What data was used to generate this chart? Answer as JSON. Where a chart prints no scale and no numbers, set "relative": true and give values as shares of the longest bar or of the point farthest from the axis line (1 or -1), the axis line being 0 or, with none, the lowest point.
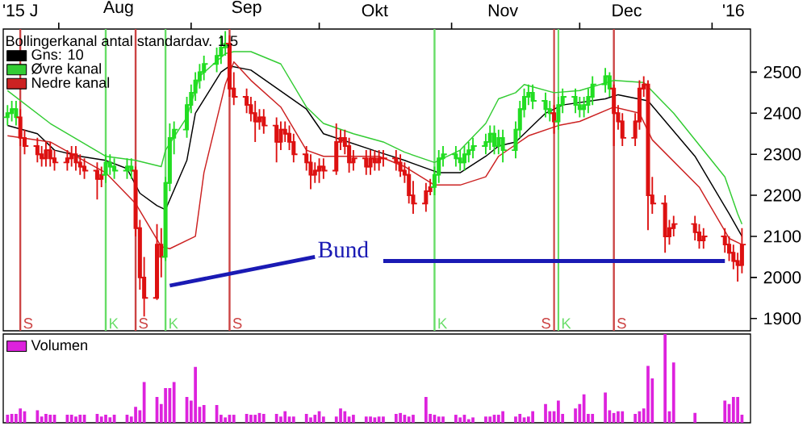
{
  "chart_data": [
    {
      "type": "candlestick",
      "x": [
        "2015-07-20",
        "2015-07-21",
        "2015-07-22",
        "2015-07-23",
        "2015-07-24",
        "2015-07-27",
        "2015-07-28",
        "2015-07-29",
        "2015-07-30",
        "2015-07-31",
        "2015-08-03",
        "2015-08-04",
        "2015-08-05",
        "2015-08-06",
        "2015-08-07",
        "2015-08-10",
        "2015-08-11",
        "2015-08-12",
        "2015-08-13",
        "2015-08-14",
        "2015-08-17",
        "2015-08-18",
        "2015-08-19",
        "2015-08-20",
        "2015-08-21",
        "2015-08-24",
        "2015-08-25",
        "2015-08-26",
        "2015-08-27",
        "2015-08-28",
        "2015-08-31",
        "2015-09-01",
        "2015-09-02",
        "2015-09-03",
        "2015-09-04",
        "2015-09-07",
        "2015-09-08",
        "2015-09-09",
        "2015-09-10",
        "2015-09-11",
        "2015-09-14",
        "2015-09-15",
        "2015-09-16",
        "2015-09-17",
        "2015-09-18",
        "2015-09-21",
        "2015-09-22",
        "2015-09-23",
        "2015-09-24",
        "2015-09-25",
        "2015-09-28",
        "2015-09-29",
        "2015-09-30",
        "2015-10-01",
        "2015-10-02",
        "2015-10-05",
        "2015-10-06",
        "2015-10-07",
        "2015-10-08",
        "2015-10-09",
        "2015-10-12",
        "2015-10-13",
        "2015-10-14",
        "2015-10-15",
        "2015-10-16",
        "2015-10-19",
        "2015-10-20",
        "2015-10-21",
        "2015-10-22",
        "2015-10-23",
        "2015-10-26",
        "2015-10-27",
        "2015-10-28",
        "2015-10-29",
        "2015-10-30",
        "2015-11-02",
        "2015-11-03",
        "2015-11-04",
        "2015-11-05",
        "2015-11-06",
        "2015-11-09",
        "2015-11-10",
        "2015-11-11",
        "2015-11-12",
        "2015-11-13",
        "2015-11-16",
        "2015-11-17",
        "2015-11-18",
        "2015-11-19",
        "2015-11-20",
        "2015-11-23",
        "2015-11-24",
        "2015-11-25",
        "2015-11-26",
        "2015-11-27",
        "2015-11-30",
        "2015-12-01",
        "2015-12-02",
        "2015-12-03",
        "2015-12-04",
        "2015-12-07",
        "2015-12-08",
        "2015-12-09",
        "2015-12-10",
        "2015-12-11",
        "2015-12-14",
        "2015-12-15",
        "2015-12-16",
        "2015-12-17",
        "2015-12-18",
        "2015-12-21",
        "2015-12-22",
        "2015-12-23",
        "2015-12-28",
        "2015-12-29",
        "2015-12-30",
        "2016-01-04",
        "2016-01-05",
        "2016-01-06",
        "2016-01-07",
        "2016-01-08"
      ],
      "ohlc": [
        [
          2390,
          2420,
          2370,
          2400
        ],
        [
          2400,
          2430,
          2380,
          2410
        ],
        [
          2410,
          2430,
          2370,
          2390
        ],
        [
          2390,
          2410,
          2320,
          2340
        ],
        [
          2340,
          2360,
          2300,
          2320
        ],
        [
          2320,
          2340,
          2280,
          2300
        ],
        [
          2300,
          2320,
          2270,
          2290
        ],
        [
          2290,
          2330,
          2270,
          2310
        ],
        [
          2310,
          2330,
          2270,
          2290
        ],
        [
          2290,
          2310,
          2260,
          2280
        ],
        [
          2280,
          2310,
          2260,
          2290
        ],
        [
          2290,
          2320,
          2270,
          2300
        ],
        [
          2300,
          2320,
          2260,
          2280
        ],
        [
          2280,
          2300,
          2250,
          2270
        ],
        [
          2270,
          2290,
          2240,
          2260
        ],
        [
          2260,
          2280,
          2190,
          2240
        ],
        [
          2240,
          2270,
          2220,
          2250
        ],
        [
          2250,
          2300,
          2230,
          2280
        ],
        [
          2280,
          2300,
          2250,
          2270
        ],
        [
          2270,
          2290,
          2240,
          2260
        ],
        [
          2260,
          2290,
          2240,
          2270
        ],
        [
          2270,
          2290,
          2240,
          2260
        ],
        [
          2260,
          2270,
          2100,
          2120
        ],
        [
          2120,
          2140,
          1970,
          2000
        ],
        [
          2000,
          2050,
          1905,
          1950
        ],
        [
          1950,
          2130,
          1945,
          2080
        ],
        [
          2080,
          2120,
          2000,
          2050
        ],
        [
          2050,
          2245,
          2040,
          2230
        ],
        [
          2230,
          2375,
          2210,
          2340
        ],
        [
          2340,
          2380,
          2300,
          2360
        ],
        [
          2360,
          2440,
          2340,
          2420
        ],
        [
          2420,
          2470,
          2400,
          2450
        ],
        [
          2450,
          2500,
          2430,
          2480
        ],
        [
          2480,
          2520,
          2460,
          2500
        ],
        [
          2500,
          2540,
          2480,
          2520
        ],
        [
          2520,
          2560,
          2500,
          2540
        ],
        [
          2540,
          2590,
          2520,
          2560
        ],
        [
          2560,
          2600,
          2540,
          2570
        ],
        [
          2570,
          2590,
          2440,
          2460
        ],
        [
          2460,
          2500,
          2420,
          2440
        ],
        [
          2440,
          2460,
          2400,
          2420
        ],
        [
          2420,
          2440,
          2380,
          2400
        ],
        [
          2400,
          2430,
          2330,
          2380
        ],
        [
          2380,
          2410,
          2360,
          2390
        ],
        [
          2390,
          2410,
          2350,
          2370
        ],
        [
          2370,
          2390,
          2280,
          2330
        ],
        [
          2330,
          2380,
          2310,
          2360
        ],
        [
          2360,
          2380,
          2330,
          2350
        ],
        [
          2350,
          2370,
          2310,
          2330
        ],
        [
          2330,
          2350,
          2280,
          2300
        ],
        [
          2300,
          2320,
          2260,
          2280
        ],
        [
          2280,
          2300,
          2215,
          2250
        ],
        [
          2250,
          2280,
          2230,
          2260
        ],
        [
          2260,
          2290,
          2230,
          2270
        ],
        [
          2270,
          2290,
          2240,
          2260
        ],
        [
          2260,
          2375,
          2250,
          2330
        ],
        [
          2330,
          2360,
          2310,
          2340
        ],
        [
          2340,
          2360,
          2300,
          2320
        ],
        [
          2320,
          2340,
          2255,
          2280
        ],
        [
          2280,
          2310,
          2260,
          2290
        ],
        [
          2290,
          2310,
          2250,
          2270
        ],
        [
          2270,
          2310,
          2250,
          2290
        ],
        [
          2290,
          2310,
          2260,
          2280
        ],
        [
          2280,
          2310,
          2260,
          2290
        ],
        [
          2290,
          2310,
          2270,
          2290
        ],
        [
          2290,
          2310,
          2260,
          2280
        ],
        [
          2280,
          2300,
          2245,
          2260
        ],
        [
          2260,
          2280,
          2230,
          2250
        ],
        [
          2250,
          2270,
          2180,
          2200
        ],
        [
          2200,
          2235,
          2155,
          2180
        ],
        [
          2180,
          2230,
          2160,
          2210
        ],
        [
          2210,
          2240,
          2200,
          2220
        ],
        [
          2220,
          2270,
          2200,
          2250
        ],
        [
          2250,
          2310,
          2230,
          2290
        ],
        [
          2290,
          2320,
          2270,
          2300
        ],
        [
          2300,
          2320,
          2270,
          2290
        ],
        [
          2290,
          2310,
          2260,
          2280
        ],
        [
          2280,
          2320,
          2260,
          2300
        ],
        [
          2300,
          2330,
          2280,
          2310
        ],
        [
          2310,
          2340,
          2290,
          2320
        ],
        [
          2320,
          2350,
          2300,
          2330
        ],
        [
          2330,
          2370,
          2310,
          2350
        ],
        [
          2350,
          2370,
          2300,
          2320
        ],
        [
          2320,
          2360,
          2300,
          2340
        ],
        [
          2340,
          2360,
          2280,
          2310
        ],
        [
          2310,
          2380,
          2290,
          2360
        ],
        [
          2360,
          2430,
          2340,
          2410
        ],
        [
          2410,
          2460,
          2390,
          2440
        ],
        [
          2440,
          2470,
          2420,
          2450
        ],
        [
          2450,
          2470,
          2410,
          2430
        ],
        [
          2430,
          2450,
          2390,
          2410
        ],
        [
          2410,
          2430,
          2380,
          2400
        ],
        [
          2400,
          2420,
          2350,
          2380
        ],
        [
          2380,
          2440,
          2360,
          2420
        ],
        [
          2420,
          2460,
          2400,
          2440
        ],
        [
          2440,
          2460,
          2400,
          2420
        ],
        [
          2420,
          2440,
          2390,
          2410
        ],
        [
          2410,
          2440,
          2390,
          2420
        ],
        [
          2420,
          2460,
          2400,
          2440
        ],
        [
          2440,
          2490,
          2420,
          2470
        ],
        [
          2470,
          2510,
          2450,
          2490
        ],
        [
          2490,
          2500,
          2440,
          2460
        ],
        [
          2460,
          2470,
          2320,
          2400
        ],
        [
          2400,
          2420,
          2360,
          2380
        ],
        [
          2380,
          2400,
          2320,
          2340
        ],
        [
          2340,
          2400,
          2320,
          2380
        ],
        [
          2380,
          2480,
          2360,
          2460
        ],
        [
          2460,
          2490,
          2440,
          2470
        ],
        [
          2470,
          2480,
          2115,
          2200
        ],
        [
          2200,
          2245,
          2155,
          2180
        ],
        [
          2180,
          2200,
          2060,
          2100
        ],
        [
          2100,
          2140,
          2080,
          2120
        ],
        [
          2120,
          2150,
          2100,
          2130
        ],
        [
          2130,
          2150,
          2090,
          2110
        ],
        [
          2110,
          2130,
          2070,
          2090
        ],
        [
          2090,
          2120,
          2070,
          2100
        ],
        [
          2100,
          2120,
          2060,
          2080
        ],
        [
          2080,
          2100,
          2040,
          2060
        ],
        [
          2060,
          2080,
          2020,
          2040
        ],
        [
          2040,
          2060,
          1990,
          2030
        ],
        [
          2030,
          2120,
          2010,
          2080
        ]
      ],
      "colors": [
        "#22dd22",
        "#22dd22",
        "#22dd22",
        "#dd1111",
        "#dd1111",
        "#dd1111",
        "#dd1111",
        "#dd1111",
        "#dd1111",
        "#dd1111",
        "#dd1111",
        "#dd1111",
        "#dd1111",
        "#dd1111",
        "#dd1111",
        "#dd1111",
        "#dd1111",
        "#22dd22",
        "#22dd22",
        "#22dd22",
        "#22dd22",
        "#22dd22",
        "#dd1111",
        "#dd1111",
        "#dd1111",
        "#dd1111",
        "#dd1111",
        "#22dd22",
        "#22dd22",
        "#22dd22",
        "#22dd22",
        "#22dd22",
        "#22dd22",
        "#22dd22",
        "#22dd22",
        "#22dd22",
        "#22dd22",
        "#22dd22",
        "#dd1111",
        "#dd1111",
        "#dd1111",
        "#dd1111",
        "#dd1111",
        "#dd1111",
        "#dd1111",
        "#dd1111",
        "#dd1111",
        "#dd1111",
        "#dd1111",
        "#dd1111",
        "#dd1111",
        "#dd1111",
        "#dd1111",
        "#dd1111",
        "#dd1111",
        "#dd1111",
        "#dd1111",
        "#dd1111",
        "#dd1111",
        "#dd1111",
        "#dd1111",
        "#dd1111",
        "#dd1111",
        "#dd1111",
        "#dd1111",
        "#dd1111",
        "#dd1111",
        "#dd1111",
        "#dd1111",
        "#dd1111",
        "#dd1111",
        "#dd1111",
        "#22dd22",
        "#22dd22",
        "#22dd22",
        "#22dd22",
        "#22dd22",
        "#22dd22",
        "#22dd22",
        "#22dd22",
        "#22dd22",
        "#22dd22",
        "#22dd22",
        "#22dd22",
        "#22dd22",
        "#22dd22",
        "#22dd22",
        "#22dd22",
        "#22dd22",
        "#22dd22",
        "#22dd22",
        "#22dd22",
        "#dd1111",
        "#22dd22",
        "#22dd22",
        "#22dd22",
        "#22dd22",
        "#22dd22",
        "#22dd22",
        "#22dd22",
        "#22dd22",
        "#22dd22",
        "#dd1111",
        "#dd1111",
        "#dd1111",
        "#dd1111",
        "#dd1111",
        "#dd1111",
        "#dd1111",
        "#dd1111",
        "#dd1111",
        "#dd1111",
        "#dd1111",
        "#dd1111",
        "#dd1111",
        "#dd1111",
        "#dd1111",
        "#dd1111",
        "#dd1111",
        "#dd1111",
        "#dd1111"
      ],
      "series": [
        {
          "type": "line",
          "name": "Gns: 10",
          "color": "#000000",
          "x": [
            "2015-07-20",
            "2015-07-27",
            "2015-07-31",
            "2015-08-06",
            "2015-08-12",
            "2015-08-17",
            "2015-08-20",
            "2015-08-24",
            "2015-08-26",
            "2015-08-31",
            "2015-09-02",
            "2015-09-08",
            "2015-09-10",
            "2015-09-15",
            "2015-09-28",
            "2015-10-02",
            "2015-10-15",
            "2015-10-21",
            "2015-10-29",
            "2015-11-03",
            "2015-11-09",
            "2015-11-12",
            "2015-11-16",
            "2015-11-23",
            "2015-11-27",
            "2015-12-07",
            "2015-12-10",
            "2015-12-17",
            "2015-12-28",
            "2016-01-05",
            "2016-01-08"
          ],
          "values": [
            2370,
            2350,
            2310,
            2295,
            2285,
            2265,
            2205,
            2175,
            2165,
            2285,
            2400,
            2500,
            2515,
            2505,
            2410,
            2350,
            2305,
            2285,
            2255,
            2255,
            2295,
            2320,
            2330,
            2400,
            2420,
            2435,
            2445,
            2430,
            2295,
            2155,
            2100
          ]
        },
        {
          "type": "line",
          "name": "Øvre kanal",
          "color": "#33cc33",
          "x": [
            "2015-07-20",
            "2015-07-30",
            "2015-08-12",
            "2015-08-19",
            "2015-08-25",
            "2015-08-26",
            "2015-08-31",
            "2015-09-03",
            "2015-09-09",
            "2015-09-11",
            "2015-09-15",
            "2015-09-22",
            "2015-09-28",
            "2015-10-02",
            "2015-10-09",
            "2015-10-16",
            "2015-10-21",
            "2015-10-28",
            "2015-11-03",
            "2015-11-09",
            "2015-11-12",
            "2015-11-16",
            "2015-11-18",
            "2015-11-25",
            "2015-12-01",
            "2015-12-09",
            "2015-12-16",
            "2015-12-23",
            "2016-01-04",
            "2016-01-07",
            "2016-01-08"
          ],
          "values": [
            2455,
            2375,
            2295,
            2285,
            2270,
            2310,
            2390,
            2490,
            2545,
            2550,
            2550,
            2520,
            2415,
            2375,
            2350,
            2330,
            2305,
            2280,
            2310,
            2375,
            2435,
            2450,
            2470,
            2450,
            2455,
            2480,
            2475,
            2400,
            2245,
            2155,
            2130
          ]
        },
        {
          "type": "line",
          "name": "Nedre kanal",
          "color": "#cc2222",
          "x": [
            "2015-07-20",
            "2015-07-30",
            "2015-08-12",
            "2015-08-19",
            "2015-08-25",
            "2015-08-27",
            "2015-09-02",
            "2015-09-04",
            "2015-09-09",
            "2015-09-11",
            "2015-09-15",
            "2015-09-22",
            "2015-09-28",
            "2015-10-02",
            "2015-10-15",
            "2015-10-21",
            "2015-10-28",
            "2015-11-03",
            "2015-11-09",
            "2015-11-12",
            "2015-11-19",
            "2015-11-26",
            "2015-12-01",
            "2015-12-09",
            "2015-12-15",
            "2015-12-18",
            "2015-12-29",
            "2016-01-05",
            "2016-01-08"
          ],
          "values": [
            2345,
            2330,
            2255,
            2180,
            2075,
            2070,
            2100,
            2255,
            2470,
            2525,
            2480,
            2415,
            2310,
            2295,
            2295,
            2270,
            2225,
            2225,
            2245,
            2295,
            2345,
            2370,
            2380,
            2415,
            2400,
            2335,
            2220,
            2095,
            2080
          ]
        },
        {
          "type": "line",
          "color": "#1a1ab4",
          "x": [
            "2015-08-27",
            "2015-09-30"
          ],
          "values": [
            1980,
            2050
          ]
        },
        {
          "type": "line",
          "color": "#1a1ab4",
          "x": [
            "2015-10-16",
            "2016-01-04"
          ],
          "values": [
            2040,
            2040
          ]
        }
      ],
      "xlim": [
        "2015-07-19",
        "2016-01-10"
      ],
      "xticks": [
        {
          "value": "2015-07-23",
          "label": "'15 J"
        },
        {
          "value": "2015-08-15",
          "label": "Aug"
        },
        {
          "value": "2015-09-14",
          "label": "Sep"
        },
        {
          "value": "2015-10-14",
          "label": "Okt"
        },
        {
          "value": "2015-11-13",
          "label": "Nov"
        },
        {
          "value": "2015-12-12",
          "label": "Dec"
        },
        {
          "value": "2016-01-06",
          "label": "'16"
        },
        {
          "value": "2015-08-01",
          "label": null
        },
        {
          "value": "2015-09-01",
          "label": null
        },
        {
          "value": "2015-10-01",
          "label": null
        },
        {
          "value": "2015-11-01",
          "label": null
        },
        {
          "value": "2015-12-01",
          "label": null
        },
        {
          "value": "2016-01-01",
          "label": null
        }
      ],
      "ylim": [
        1870,
        2605
      ],
      "yticks": [
        1900,
        2000,
        2100,
        2200,
        2300,
        2400,
        2500
      ],
      "ref_lines": [
        {
          "axis": "x",
          "value": "2015-07-23",
          "label": "S",
          "color": "#cc4444"
        },
        {
          "axis": "x",
          "value": "2015-08-12",
          "label": "K",
          "color": "#66dd66"
        },
        {
          "axis": "x",
          "value": "2015-08-19",
          "label": "S",
          "color": "#cc4444"
        },
        {
          "axis": "x",
          "value": "2015-08-26",
          "label": "K",
          "color": "#66dd66"
        },
        {
          "axis": "x",
          "value": "2015-09-10",
          "label": "S",
          "color": "#cc4444"
        },
        {
          "axis": "x",
          "value": "2015-10-28",
          "label": "K",
          "color": "#66dd66"
        },
        {
          "axis": "x",
          "value": "2015-11-25",
          "label": "S",
          "color": "#cc4444"
        },
        {
          "axis": "x",
          "value": "2015-11-26",
          "label": "K",
          "color": "#66dd66"
        },
        {
          "axis": "x",
          "value": "2015-12-09",
          "label": "S",
          "color": "#cc4444"
        }
      ],
      "annotations": [
        "Bund"
      ],
      "legend": "top left",
      "legend_title": "Bollingerkanal antal standardav. 1,5"
    },
    {
      "type": "bar",
      "relative": true,
      "x": [
        "2015-07-20",
        "2015-07-21",
        "2015-07-22",
        "2015-07-23",
        "2015-07-24",
        "2015-07-27",
        "2015-07-28",
        "2015-07-29",
        "2015-07-30",
        "2015-07-31",
        "2015-08-03",
        "2015-08-04",
        "2015-08-05",
        "2015-08-06",
        "2015-08-07",
        "2015-08-10",
        "2015-08-11",
        "2015-08-12",
        "2015-08-13",
        "2015-08-14",
        "2015-08-17",
        "2015-08-18",
        "2015-08-19",
        "2015-08-20",
        "2015-08-21",
        "2015-08-24",
        "2015-08-25",
        "2015-08-26",
        "2015-08-27",
        "2015-08-28",
        "2015-08-31",
        "2015-09-01",
        "2015-09-02",
        "2015-09-03",
        "2015-09-04",
        "2015-09-07",
        "2015-09-08",
        "2015-09-09",
        "2015-09-10",
        "2015-09-11",
        "2015-09-14",
        "2015-09-15",
        "2015-09-16",
        "2015-09-17",
        "2015-09-18",
        "2015-09-21",
        "2015-09-22",
        "2015-09-23",
        "2015-09-24",
        "2015-09-25",
        "2015-09-28",
        "2015-09-29",
        "2015-09-30",
        "2015-10-01",
        "2015-10-02",
        "2015-10-05",
        "2015-10-06",
        "2015-10-07",
        "2015-10-08",
        "2015-10-09",
        "2015-10-12",
        "2015-10-13",
        "2015-10-14",
        "2015-10-15",
        "2015-10-16",
        "2015-10-19",
        "2015-10-20",
        "2015-10-21",
        "2015-10-22",
        "2015-10-23",
        "2015-10-26",
        "2015-10-27",
        "2015-10-28",
        "2015-10-29",
        "2015-10-30",
        "2015-11-02",
        "2015-11-03",
        "2015-11-04",
        "2015-11-05",
        "2015-11-06",
        "2015-11-09",
        "2015-11-10",
        "2015-11-11",
        "2015-11-12",
        "2015-11-13",
        "2015-11-16",
        "2015-11-17",
        "2015-11-18",
        "2015-11-19",
        "2015-11-20",
        "2015-11-23",
        "2015-11-24",
        "2015-11-25",
        "2015-11-26",
        "2015-11-27",
        "2015-11-30",
        "2015-12-01",
        "2015-12-02",
        "2015-12-03",
        "2015-12-04",
        "2015-12-07",
        "2015-12-08",
        "2015-12-09",
        "2015-12-10",
        "2015-12-11",
        "2015-12-14",
        "2015-12-15",
        "2015-12-16",
        "2015-12-17",
        "2015-12-18",
        "2015-12-21",
        "2015-12-22",
        "2015-12-23",
        "2015-12-28",
        "2015-12-29",
        "2015-12-30",
        "2016-01-04",
        "2016-01-05",
        "2016-01-06",
        "2016-01-07",
        "2016-01-08"
      ],
      "series": [
        {
          "name": "Volumen",
          "color": "#dd22dd",
          "values": [
            0.09,
            0.1,
            0.1,
            0.16,
            0.13,
            0.14,
            0.07,
            0.1,
            0.09,
            0.09,
            0.09,
            0.09,
            0.07,
            0.09,
            0.09,
            0.1,
            0.07,
            0.09,
            0.06,
            0.09,
            0.09,
            0.07,
            0.18,
            0.14,
            0.46,
            0.29,
            0.21,
            0.39,
            0.39,
            0.46,
            0.29,
            0.25,
            0.63,
            0.18,
            0.2,
            0.2,
            0.09,
            0.06,
            0.09,
            0.09,
            0.1,
            0.09,
            0.09,
            0.11,
            0.1,
            0.1,
            0.07,
            0.13,
            0.07,
            0.07,
            0.1,
            0.06,
            0.09,
            0.13,
            0.07,
            0.07,
            0.16,
            0.13,
            0.07,
            0.09,
            0.07,
            0.07,
            0.06,
            0.07,
            0.07,
            0.1,
            0.11,
            0.09,
            0.07,
            0.09,
            0.29,
            0.1,
            0.09,
            0.07,
            0.07,
            0.09,
            0.06,
            0.09,
            0.04,
            0.06,
            0.07,
            0.07,
            0.09,
            0.09,
            0.13,
            0.07,
            0.1,
            0.06,
            0.07,
            0.13,
            0.21,
            0.13,
            0.13,
            0.25,
            0.1,
            0.16,
            0.21,
            0.32,
            0.1,
            0.1,
            0.34,
            0.14,
            0.11,
            0.13,
            0.13,
            0.1,
            0.13,
            0.16,
            0.64,
            0.5,
            1,
            0.13,
            0.68,
            0.11,
            null,
            null,
            0.25,
            0.21,
            0.29,
            0.29,
            0.09
          ]
        }
      ],
      "xlim": [
        "2015-07-19",
        "2016-01-10"
      ],
      "legend": "top left",
      "tick_labels": false
    }
  ]
}
